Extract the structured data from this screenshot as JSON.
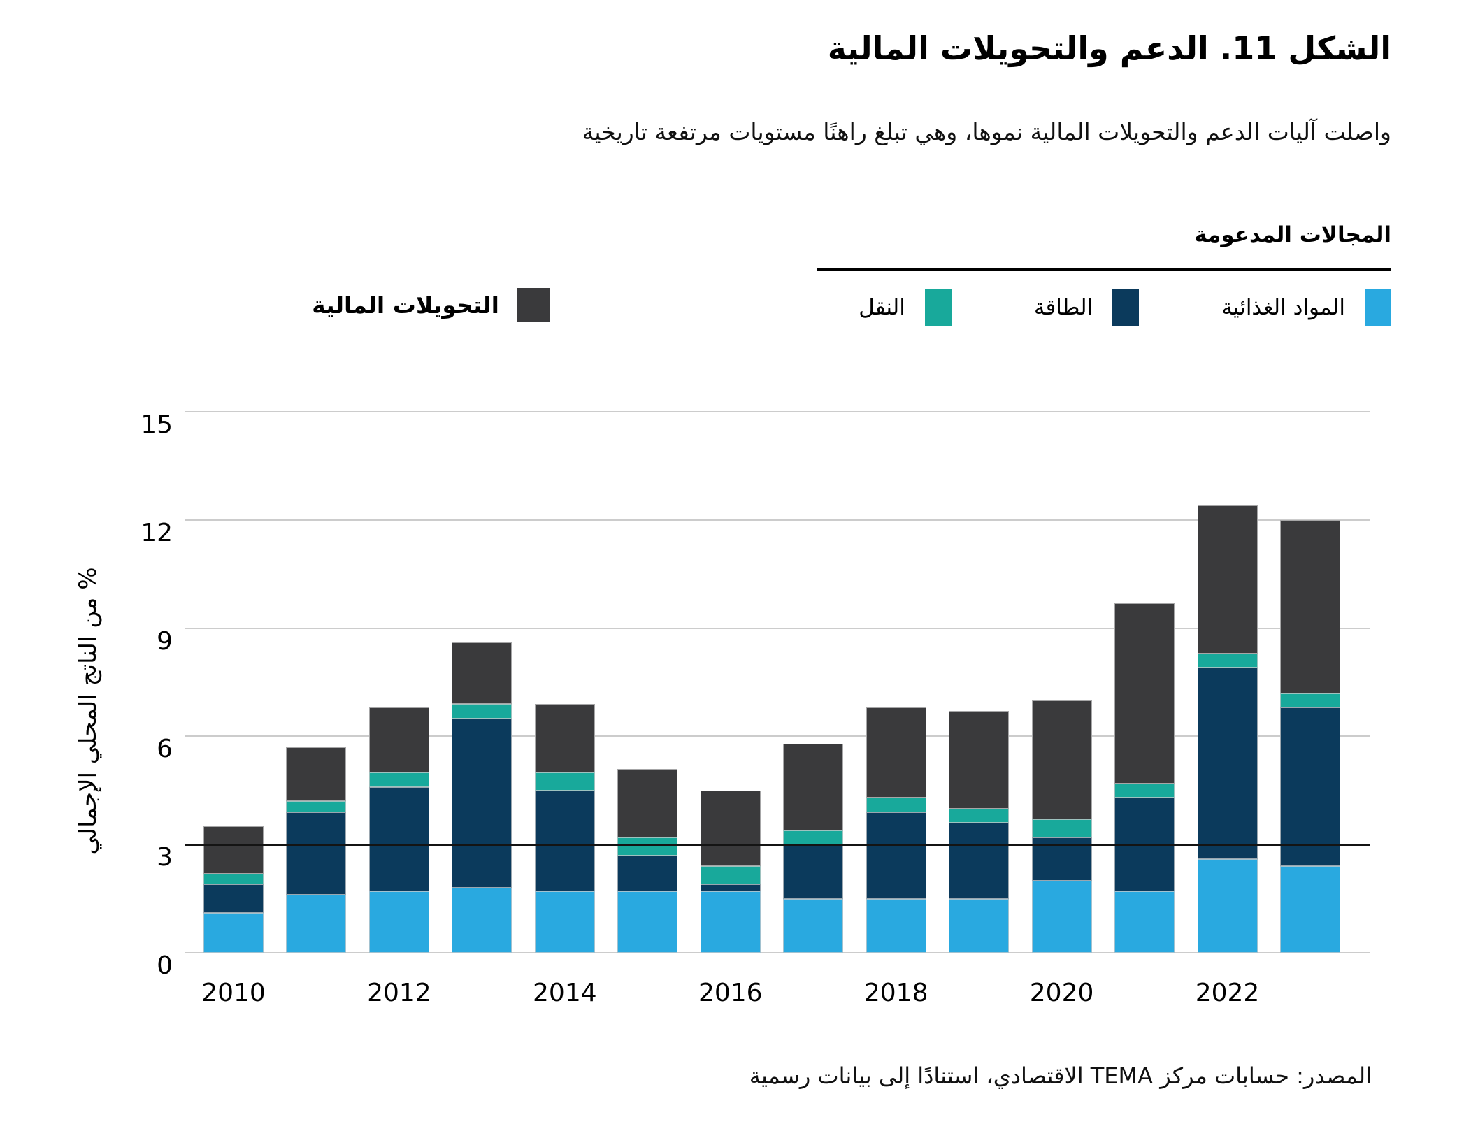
{
  "title": "الشكل 11. الدعم والتحويلات المالية",
  "subtitle": "واصلت آليات الدعم والتحويلات المالية نموها، وهي تبلغ راهنًا مستويات مرتفعة تاريخية",
  "legend": {
    "group_title": "المجالات المدعومة",
    "items": [
      {
        "key": "food",
        "label": "المواد الغذائية",
        "color": "#29a9e0"
      },
      {
        "key": "energy",
        "label": "الطاقة",
        "color": "#0b3a5c"
      },
      {
        "key": "transport",
        "label": "النقل",
        "color": "#18a99b"
      }
    ],
    "standalone_item": {
      "key": "transfers",
      "label": "التحويلات المالية",
      "color": "#3a3a3c"
    }
  },
  "chart_data": {
    "type": "bar",
    "stacked": true,
    "title": "الشكل 11. الدعم والتحويلات المالية",
    "xlabel": "",
    "ylabel": "% من الناتج المحلي الإجمالي",
    "ylim": [
      0,
      15
    ],
    "yticks": [
      0,
      3,
      6,
      9,
      12,
      15
    ],
    "highlighted_gridline": 3,
    "grid": true,
    "legend_position": "top",
    "x": [
      2010,
      2011,
      2012,
      2013,
      2014,
      2015,
      2016,
      2017,
      2018,
      2019,
      2020,
      2021,
      2022,
      2023
    ],
    "x_tick_labels": [
      "2010",
      "2012",
      "2014",
      "2016",
      "2018",
      "2020",
      "2022"
    ],
    "series": [
      {
        "name": "المواد الغذائية",
        "color": "#29a9e0",
        "values": [
          1.1,
          1.6,
          1.7,
          1.8,
          1.7,
          1.7,
          1.7,
          1.5,
          1.5,
          1.5,
          2.0,
          1.7,
          2.6,
          2.4
        ]
      },
      {
        "name": "الطاقة",
        "color": "#0b3a5c",
        "values": [
          0.8,
          2.3,
          2.9,
          4.7,
          2.8,
          1.0,
          0.2,
          1.5,
          2.4,
          2.1,
          1.2,
          2.6,
          5.3,
          4.4
        ]
      },
      {
        "name": "النقل",
        "color": "#18a99b",
        "values": [
          0.3,
          0.3,
          0.4,
          0.4,
          0.5,
          0.5,
          0.5,
          0.4,
          0.4,
          0.4,
          0.5,
          0.4,
          0.4,
          0.4
        ]
      },
      {
        "name": "التحويلات المالية",
        "color": "#3a3a3c",
        "values": [
          1.3,
          1.5,
          1.8,
          1.7,
          1.9,
          1.9,
          2.1,
          2.4,
          2.5,
          2.7,
          3.3,
          5.0,
          4.1,
          4.8
        ]
      }
    ]
  },
  "source": "المصدر: حسابات مركز TEMA الاقتصادي، استنادًا إلى بيانات رسمية"
}
